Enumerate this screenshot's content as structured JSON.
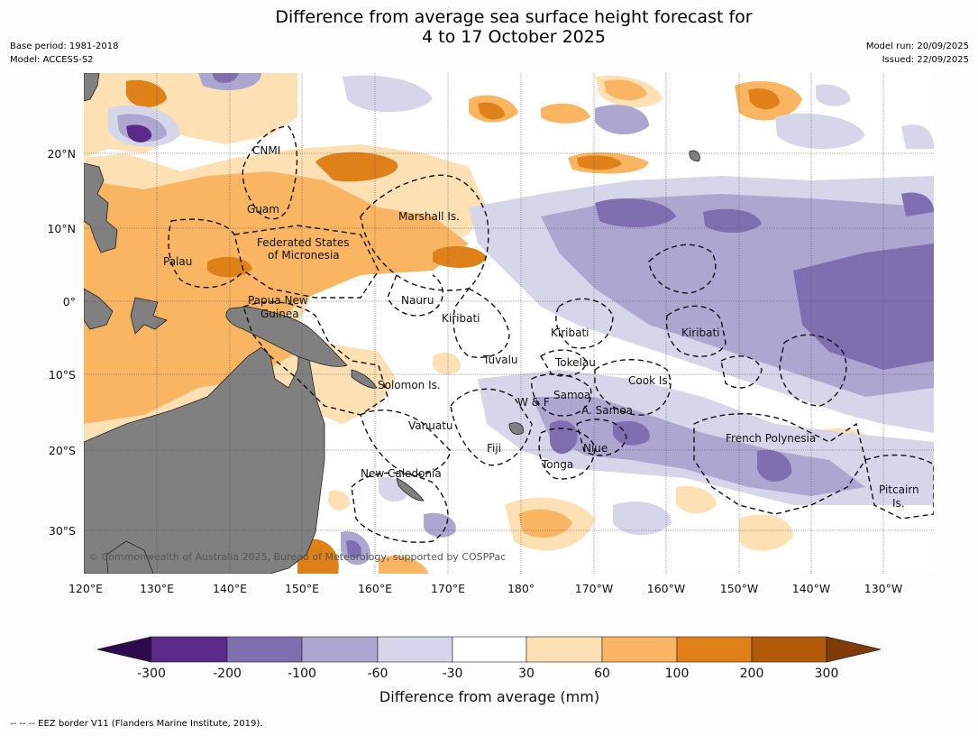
{
  "title_line1": "Difference from average sea surface height forecast for",
  "title_line2": "4 to 17 October 2025",
  "meta_left": {
    "base_period": "Base period: 1981-2018",
    "model": "Model: ACCESS-S2"
  },
  "meta_right": {
    "model_run": "Model run: 20/09/2025",
    "issued": "Issued: 22/09/2025"
  },
  "lat_labels": [
    "20°N",
    "10°N",
    "0°",
    "10°S",
    "20°S",
    "30°S"
  ],
  "lon_labels": [
    "120°E",
    "130°E",
    "140°E",
    "150°E",
    "160°E",
    "170°E",
    "180°",
    "170°W",
    "160°W",
    "150°W",
    "140°W",
    "130°W"
  ],
  "places": {
    "cnmi": "CNMI",
    "guam": "Guam",
    "marshall": "Marshall Is.",
    "fsm1": "Federated States",
    "fsm2": "of Micronesia",
    "palau": "Palau",
    "png1": "Papua New",
    "png2": "Guinea",
    "nauru": "Nauru",
    "kiribati_w": "Kiribati",
    "kiribati_c": "Kiribati",
    "kiribati_e": "Kiribati",
    "tuvalu": "Tuvalu",
    "tokelau": "Tokelau",
    "cook": "Cook Is.",
    "solomon": "Solomon Is.",
    "samoa": "Samoa",
    "wf": "W & F",
    "asamoa": "A. Samoa",
    "vanuatu": "Vanuatu",
    "fiji": "Fiji",
    "niue": "Niue",
    "tonga": "Tonga",
    "newcal": "New Caledonia",
    "frpoly": "French Polynesia",
    "pitcairn1": "Pitcairn",
    "pitcairn2": "Is."
  },
  "copyright": "© Commonwealth of Australia 2025, Bureau of Meteorology, supported by COSPPac",
  "colorbar": {
    "ticks": [
      "-300",
      "-200",
      "-100",
      "-60",
      "-30",
      "30",
      "60",
      "100",
      "200",
      "300"
    ],
    "colors": [
      "#2d0a4e",
      "#5a2a8a",
      "#7f6fb0",
      "#ada6d0",
      "#d6d6ea",
      "#ffffff",
      "#fde0b4",
      "#f9b561",
      "#e08018",
      "#b3590a",
      "#7f3b08"
    ],
    "label": "Difference from average (mm)"
  },
  "legend_footer": "-- -- -- EEZ border V11 (Flanders Marine Institute, 2019).",
  "colors": {
    "land": "#808080",
    "ocean": "#ffffff"
  }
}
